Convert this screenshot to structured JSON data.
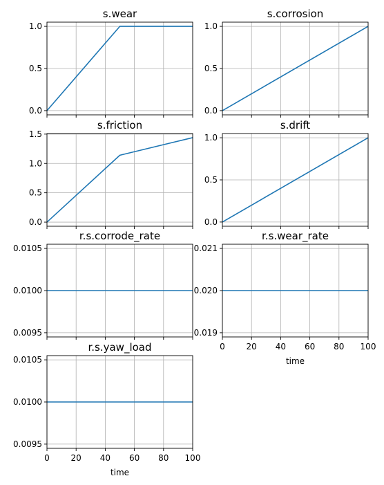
{
  "colors": {
    "series": "#1f77b4",
    "grid": "#b0b0b0"
  },
  "chart_data": [
    {
      "type": "line",
      "title": "s.wear",
      "x": [
        0,
        50,
        100
      ],
      "series": [
        {
          "values": [
            0.0,
            1.0,
            1.0
          ]
        }
      ],
      "xlim": [
        0,
        100
      ],
      "ylim": [
        -0.05,
        1.05
      ],
      "xticks": [
        0,
        20,
        40,
        60,
        80,
        100
      ],
      "xtick_labels_visible": false,
      "yticks": [
        0.0,
        0.5,
        1.0
      ],
      "ytick_labels": [
        "0.0",
        "0.5",
        "1.0"
      ],
      "xlabel": "",
      "grid": true
    },
    {
      "type": "line",
      "title": "s.corrosion",
      "x": [
        0,
        100
      ],
      "series": [
        {
          "values": [
            0.0,
            1.0
          ]
        }
      ],
      "xlim": [
        0,
        100
      ],
      "ylim": [
        -0.05,
        1.05
      ],
      "xticks": [
        0,
        20,
        40,
        60,
        80,
        100
      ],
      "xtick_labels_visible": false,
      "yticks": [
        0.0,
        0.5,
        1.0
      ],
      "ytick_labels": [
        "0.0",
        "0.5",
        "1.0"
      ],
      "xlabel": "",
      "grid": true
    },
    {
      "type": "line",
      "title": "s.friction",
      "x": [
        0,
        50,
        100
      ],
      "series": [
        {
          "values": [
            0.0,
            1.14,
            1.44
          ]
        }
      ],
      "xlim": [
        0,
        100
      ],
      "ylim": [
        -0.07,
        1.51
      ],
      "xticks": [
        0,
        20,
        40,
        60,
        80,
        100
      ],
      "xtick_labels_visible": false,
      "yticks": [
        0.0,
        0.5,
        1.0,
        1.5
      ],
      "ytick_labels": [
        "0.0",
        "0.5",
        "1.0",
        "1.5"
      ],
      "xlabel": "",
      "grid": true
    },
    {
      "type": "line",
      "title": "s.drift",
      "x": [
        0,
        100
      ],
      "series": [
        {
          "values": [
            0.0,
            1.0
          ]
        }
      ],
      "xlim": [
        0,
        100
      ],
      "ylim": [
        -0.05,
        1.05
      ],
      "xticks": [
        0,
        20,
        40,
        60,
        80,
        100
      ],
      "xtick_labels_visible": false,
      "yticks": [
        0.0,
        0.5,
        1.0
      ],
      "ytick_labels": [
        "0.0",
        "0.5",
        "1.0"
      ],
      "xlabel": "",
      "grid": true
    },
    {
      "type": "line",
      "title": "r.s.corrode_rate",
      "x": [
        0,
        100
      ],
      "series": [
        {
          "values": [
            0.01,
            0.01
          ]
        }
      ],
      "xlim": [
        0,
        100
      ],
      "ylim": [
        0.00945,
        0.01055
      ],
      "xticks": [
        0,
        20,
        40,
        60,
        80,
        100
      ],
      "xtick_labels_visible": false,
      "yticks": [
        0.0095,
        0.01,
        0.0105
      ],
      "ytick_labels": [
        "0.0095",
        "0.0100",
        "0.0105"
      ],
      "xlabel": "",
      "grid": true
    },
    {
      "type": "line",
      "title": "r.s.wear_rate",
      "x": [
        0,
        100
      ],
      "series": [
        {
          "values": [
            0.02,
            0.02
          ]
        }
      ],
      "xlim": [
        0,
        100
      ],
      "ylim": [
        0.0189,
        0.0211
      ],
      "xticks": [
        0,
        20,
        40,
        60,
        80,
        100
      ],
      "xtick_labels_visible": true,
      "xtick_labels": [
        "0",
        "20",
        "40",
        "60",
        "80",
        "100"
      ],
      "yticks": [
        0.019,
        0.02,
        0.021
      ],
      "ytick_labels": [
        "0.019",
        "0.020",
        "0.021"
      ],
      "xlabel": "time",
      "grid": true
    },
    {
      "type": "line",
      "title": "r.s.yaw_load",
      "x": [
        0,
        100
      ],
      "series": [
        {
          "values": [
            0.01,
            0.01
          ]
        }
      ],
      "xlim": [
        0,
        100
      ],
      "ylim": [
        0.00945,
        0.01055
      ],
      "xticks": [
        0,
        20,
        40,
        60,
        80,
        100
      ],
      "xtick_labels_visible": true,
      "xtick_labels": [
        "0",
        "20",
        "40",
        "60",
        "80",
        "100"
      ],
      "yticks": [
        0.0095,
        0.01,
        0.0105
      ],
      "ytick_labels": [
        "0.0095",
        "0.0100",
        "0.0105"
      ],
      "xlabel": "time",
      "grid": true
    }
  ]
}
